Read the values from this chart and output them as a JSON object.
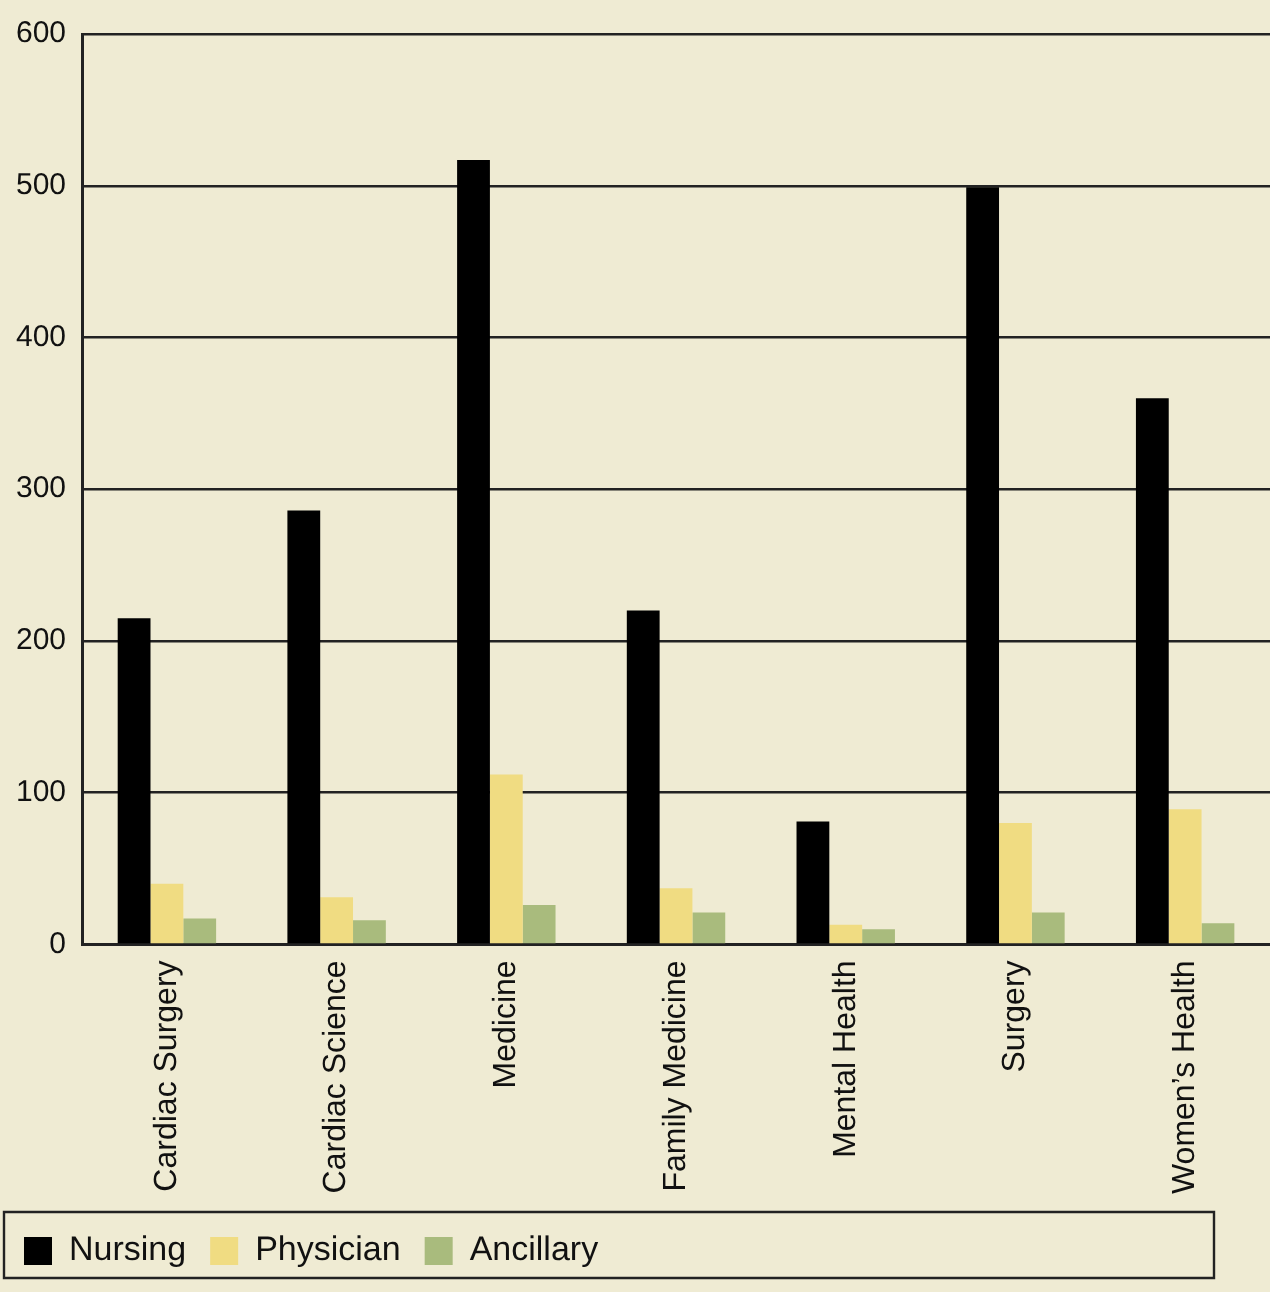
{
  "chart_data": {
    "type": "bar",
    "categories": [
      "Cardiac Surgery",
      "Cardiac Science",
      "Medicine",
      "Family Medicine",
      "Mental Health",
      "Surgery",
      "Women’s Health"
    ],
    "series": [
      {
        "name": "Nursing",
        "color": "#000000",
        "values": [
          215,
          286,
          517,
          220,
          81,
          499,
          360
        ]
      },
      {
        "name": "Physician",
        "color": "#f0dc82",
        "values": [
          40,
          31,
          112,
          37,
          13,
          80,
          89
        ]
      },
      {
        "name": "Ancillary",
        "color": "#a9bb7d",
        "values": [
          17,
          16,
          26,
          21,
          10,
          21,
          14
        ]
      }
    ],
    "ylim": [
      0,
      600
    ],
    "yticks": [
      0,
      100,
      200,
      300,
      400,
      500,
      600
    ],
    "grid": "y",
    "legend": "bottom left"
  }
}
